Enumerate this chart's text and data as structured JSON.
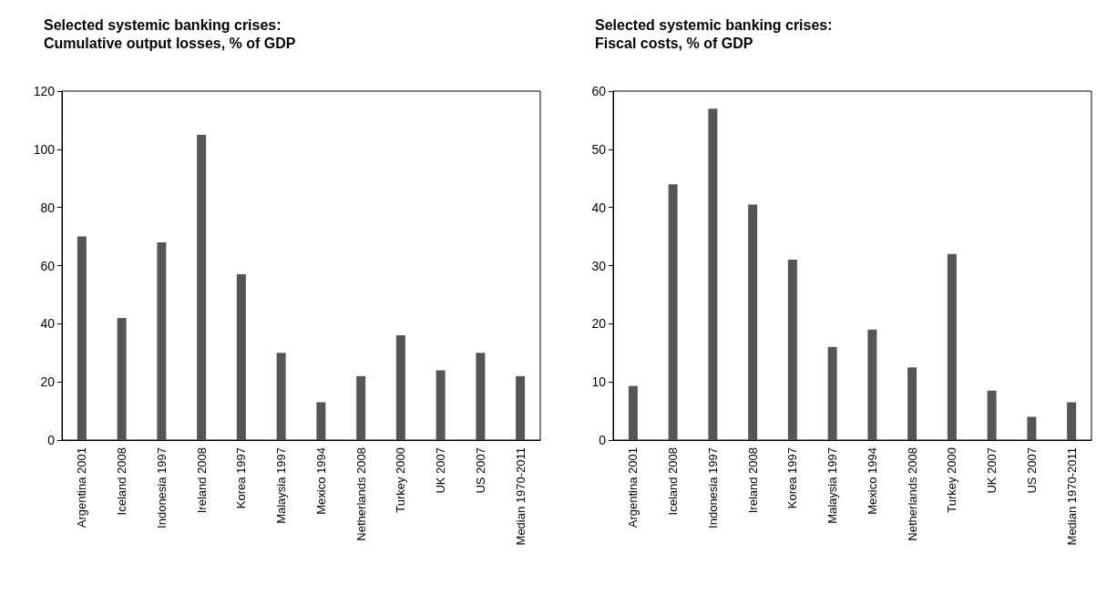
{
  "chart_data": [
    {
      "type": "bar",
      "title": "Selected systemic banking crises: Cumulative output losses, % of GDP",
      "categories": [
        "Argentina 2001",
        "Iceland 2008",
        "Indonesia 1997",
        "Ireland 2008",
        "Korea 1997",
        "Malaysia 1997",
        "Mexico 1994",
        "Netherlands 2008",
        "Turkey 2000",
        "UK 2007",
        "US 2007",
        "Median 1970-2011"
      ],
      "values": [
        70,
        42,
        68,
        105,
        57,
        30,
        13,
        22,
        36,
        24,
        30,
        22
      ],
      "color": "#555555",
      "ylim": [
        0,
        120
      ],
      "yticks": [
        0,
        20,
        40,
        60,
        80,
        100,
        120
      ],
      "grid": false
    },
    {
      "type": "bar",
      "title": "Selected systemic banking crises: Fiscal costs, % of GDP",
      "categories": [
        "Argentina 2001",
        "Iceland 2008",
        "Indonesia 1997",
        "Ireland 2008",
        "Korea 1997",
        "Malaysia 1997",
        "Mexico 1994",
        "Netherlands 2008",
        "Turkey 2000",
        "UK 2007",
        "US 2007",
        "Median 1970-2011"
      ],
      "values": [
        9.3,
        44,
        57,
        40.5,
        31,
        16,
        19,
        12.5,
        32,
        8.5,
        4,
        6.5
      ],
      "color": "#555555",
      "ylim": [
        0,
        60
      ],
      "yticks": [
        0,
        10,
        20,
        30,
        40,
        50,
        60
      ],
      "grid": false
    }
  ]
}
